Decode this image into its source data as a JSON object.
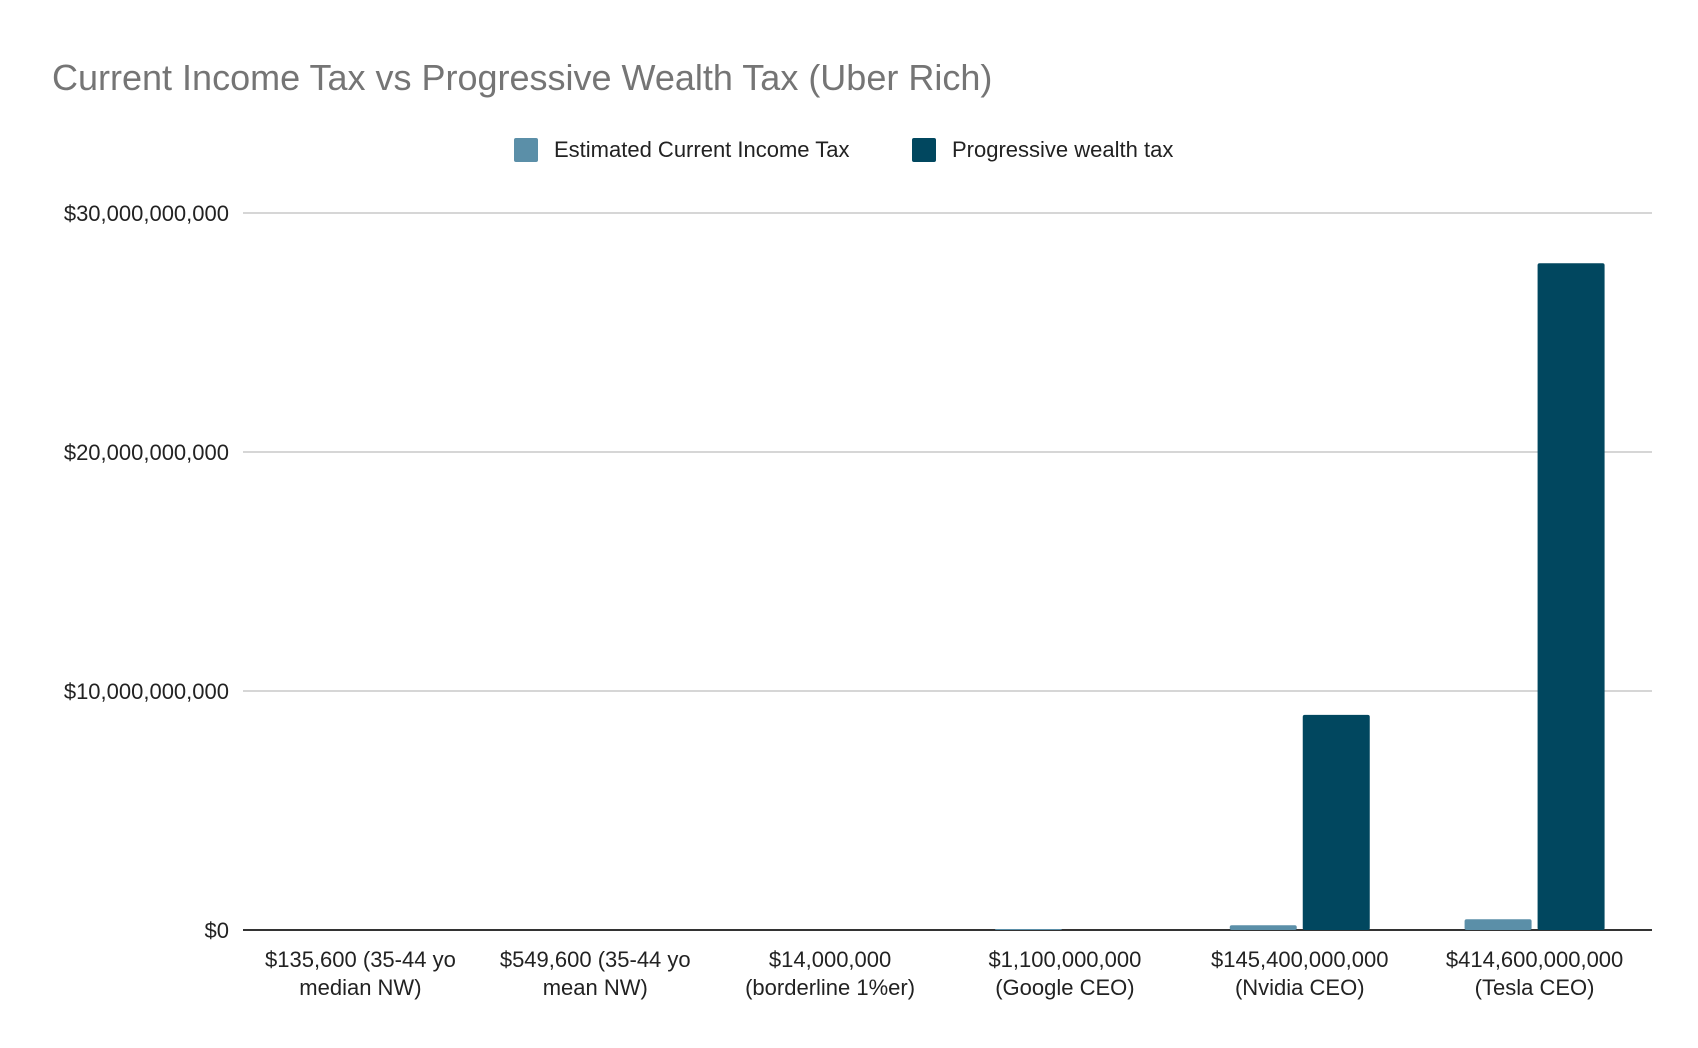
{
  "chart_data": {
    "type": "bar",
    "title": "Current Income Tax vs Progressive Wealth Tax (Uber Rich)",
    "xlabel": "",
    "ylabel": "",
    "ylim": [
      0,
      30000000000
    ],
    "y_ticks": [
      "$0",
      "$10,000,000,000",
      "$20,000,000,000",
      "$30,000,000,000"
    ],
    "grid": true,
    "legend_position": "top",
    "categories": [
      [
        "$135,600 (35-44 yo",
        "median NW)"
      ],
      [
        "$549,600 (35-44 yo",
        "mean NW)"
      ],
      [
        "$14,000,000",
        "(borderline 1%er)"
      ],
      [
        "$1,100,000,000",
        "(Google CEO)"
      ],
      [
        "$145,400,000,000",
        "(Nvidia CEO)"
      ],
      [
        "$414,600,000,000",
        "(Tesla CEO)"
      ]
    ],
    "series": [
      {
        "name": "Estimated Current Income Tax",
        "color": "#5b8fa8",
        "values": [
          0,
          0,
          0,
          40000000,
          200000000,
          450000000
        ]
      },
      {
        "name": "Progressive wealth tax",
        "color": "#01475f",
        "values": [
          0,
          0,
          0,
          0,
          9000000000,
          27900000000
        ]
      }
    ]
  }
}
